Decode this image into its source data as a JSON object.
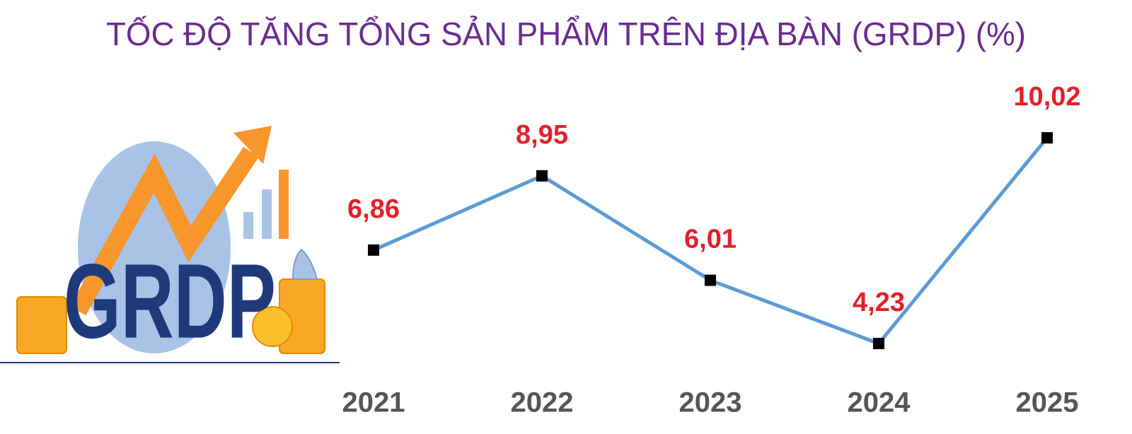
{
  "chart_data": {
    "type": "line",
    "title": "TỐC ĐỘ TĂNG TỔNG SẢN PHẨM TRÊN ĐỊA BÀN (GRDP) (%)",
    "illustration_label": "GRDP",
    "categories": [
      "2021",
      "2022",
      "2023",
      "2024",
      "2025"
    ],
    "values": [
      6.86,
      8.95,
      6.01,
      4.23,
      10.02
    ],
    "value_labels": [
      "6,86",
      "8,95",
      "6,01",
      "4,23",
      "10,02"
    ],
    "color": "#5b9bd5",
    "marker_color": "#000000",
    "label_color": "#e3202a"
  }
}
